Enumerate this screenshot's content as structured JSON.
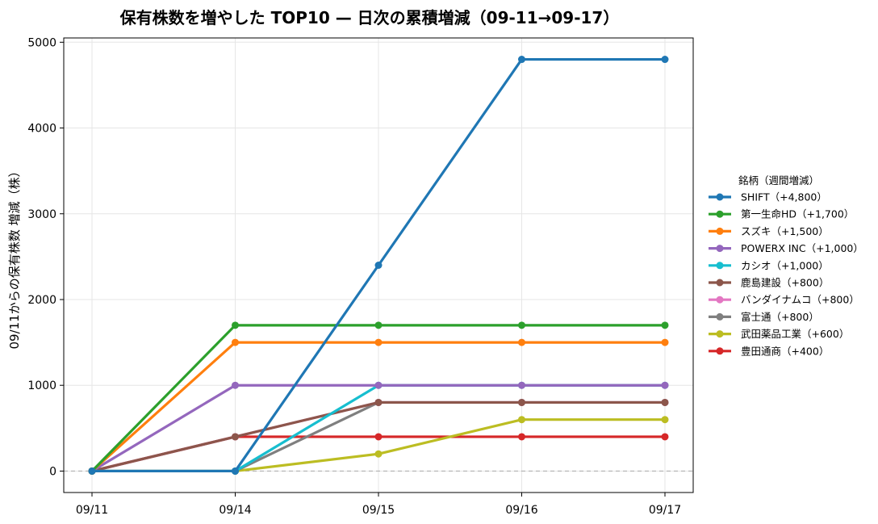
{
  "chart_data": {
    "type": "line",
    "title": "保有株数を増やした TOP10 — 日次の累積増減（09-11→09-17）",
    "xlabel": "",
    "ylabel": "09/11からの保有株数 増減（株）",
    "categories": [
      "09/11",
      "09/14",
      "09/15",
      "09/16",
      "09/17"
    ],
    "ylim": [
      -250,
      5050
    ],
    "yticks": [
      0,
      1000,
      2000,
      3000,
      4000,
      5000
    ],
    "grid": true,
    "zero_line": "dashed",
    "legend_title": "銘柄（週間増減）",
    "legend_position": "right",
    "series": [
      {
        "name": "SHIFT（+4,800）",
        "color": "#1f77b4",
        "values": [
          0,
          0,
          2400,
          4800,
          4800
        ]
      },
      {
        "name": "第一生命HD（+1,700）",
        "color": "#2ca02c",
        "values": [
          0,
          1700,
          1700,
          1700,
          1700
        ]
      },
      {
        "name": "スズキ（+1,500）",
        "color": "#ff7f0e",
        "values": [
          0,
          1500,
          1500,
          1500,
          1500
        ]
      },
      {
        "name": "POWERX INC（+1,000）",
        "color": "#9467bd",
        "values": [
          0,
          1000,
          1000,
          1000,
          1000
        ]
      },
      {
        "name": "カシオ（+1,000）",
        "color": "#17becf",
        "values": [
          0,
          0,
          1000,
          1000,
          1000
        ]
      },
      {
        "name": "鹿島建設（+800）",
        "color": "#8c564b",
        "values": [
          0,
          400,
          800,
          800,
          800
        ]
      },
      {
        "name": "バンダイナムコ（+800）",
        "color": "#e377c2",
        "values": [
          0,
          400,
          800,
          800,
          800
        ]
      },
      {
        "name": "富士通（+800）",
        "color": "#7f7f7f",
        "values": [
          0,
          0,
          800,
          800,
          800
        ]
      },
      {
        "name": "武田薬品工業（+600）",
        "color": "#bcbd22",
        "values": [
          0,
          0,
          200,
          600,
          600
        ]
      },
      {
        "name": "豊田通商（+400）",
        "color": "#d62728",
        "values": [
          0,
          400,
          400,
          400,
          400
        ]
      }
    ]
  }
}
